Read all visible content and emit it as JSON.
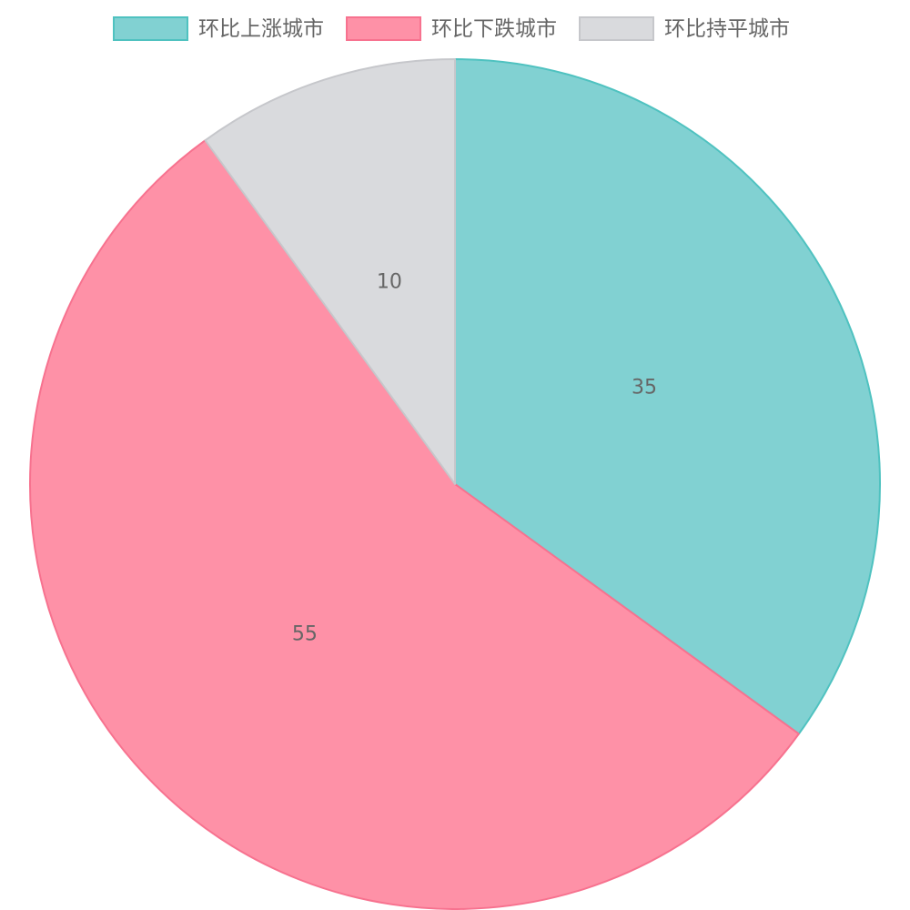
{
  "chart_data": {
    "type": "pie",
    "legend_position": "top",
    "start_angle": "top",
    "direction": "clockwise",
    "categories": [
      "环比上涨城市",
      "环比下跌城市",
      "环比持平城市"
    ],
    "values": [
      35,
      55,
      10
    ],
    "value_labels": [
      "35",
      "55",
      "10"
    ],
    "colors": {
      "fill": [
        "#81d1d2",
        "#fe91a7",
        "#d9dadd"
      ],
      "border": [
        "#4fc2c0",
        "#f7728f",
        "#c6c7cb"
      ]
    }
  }
}
